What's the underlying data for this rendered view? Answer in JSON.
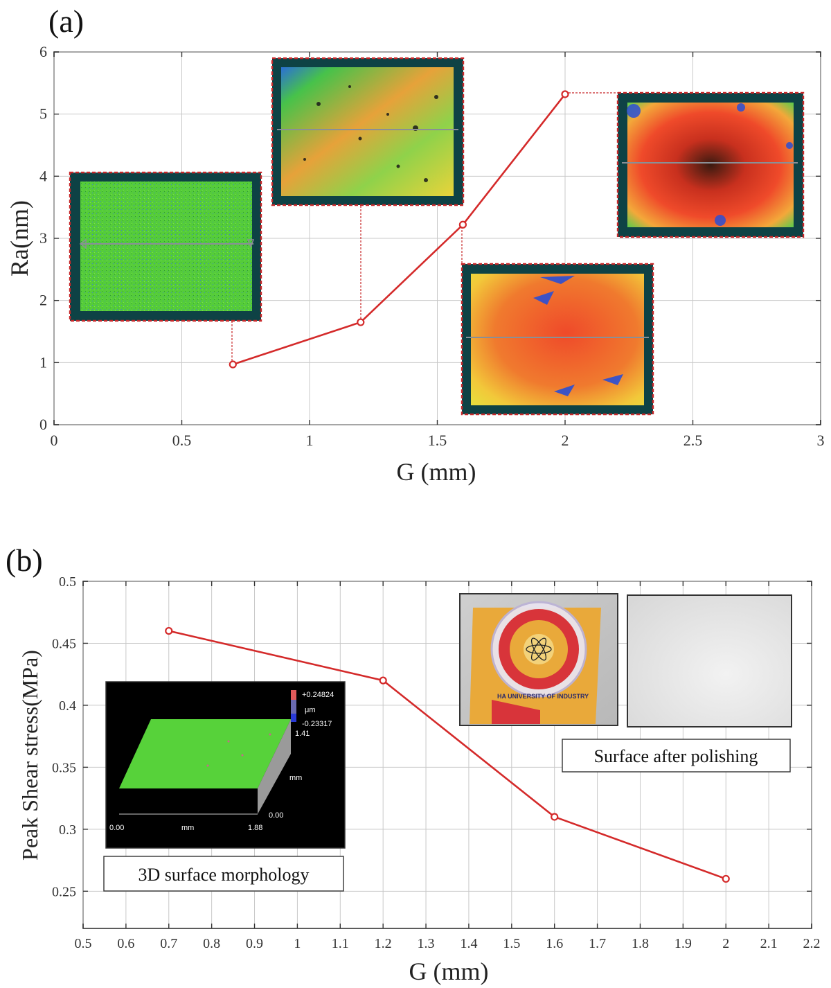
{
  "colors": {
    "series": "#d42a2a",
    "inset_border": "#0e4245",
    "grid": "#c8c8c8"
  },
  "panel_a": {
    "panel_label": "(a)",
    "inset_description_icons": [
      "surface-map-green",
      "surface-map-mixed",
      "surface-map-red-yellow",
      "surface-map-red-dark"
    ]
  },
  "panel_b": {
    "panel_label": "(b)",
    "caption_morphology": "3D surface morphology",
    "caption_polishing": "Surface after polishing",
    "morphology_inset": {
      "scale_max": "+0.24824",
      "scale_unit": "μm",
      "scale_min": "-0.23317",
      "z_max": "1.41",
      "z_unit": "mm",
      "z_min": "0.00",
      "x_start": "0.00",
      "x_unit": "mm",
      "x_end": "1.88"
    },
    "photo_text": "HA UNIVERSITY OF INDUSTRY"
  },
  "chart_data": [
    {
      "type": "line",
      "title": "",
      "xlabel": "G (mm)",
      "ylabel": "Ra(nm)",
      "xlim": [
        0,
        3
      ],
      "ylim": [
        0,
        6
      ],
      "xticks": [
        0,
        0.5,
        1,
        1.5,
        2,
        2.5,
        3
      ],
      "xtick_labels": [
        "0",
        "0.5",
        "1",
        "1.5",
        "2",
        "2.5",
        "3"
      ],
      "yticks": [
        0,
        1,
        2,
        3,
        4,
        5,
        6
      ],
      "ytick_labels": [
        "0",
        "1",
        "2",
        "3",
        "4",
        "5",
        "6"
      ],
      "grid": true,
      "x": [
        0.7,
        1.2,
        1.6,
        2.0
      ],
      "series": [
        {
          "values": [
            0.97,
            1.65,
            3.22,
            5.32
          ]
        }
      ]
    },
    {
      "type": "line",
      "title": "",
      "xlabel": "G (mm)",
      "ylabel": "Peak Shear stress(MPa)",
      "xlim": [
        0.5,
        2.2
      ],
      "ylim": [
        0.22,
        0.5
      ],
      "xticks": [
        0.5,
        0.6,
        0.7,
        0.8,
        0.9,
        1,
        1.1,
        1.2,
        1.3,
        1.4,
        1.5,
        1.6,
        1.7,
        1.8,
        1.9,
        2,
        2.1,
        2.2
      ],
      "xtick_labels": [
        "0.5",
        "0.6",
        "0.7",
        "0.8",
        "0.9",
        "1",
        "1.1",
        "1.2",
        "1.3",
        "1.4",
        "1.5",
        "1.6",
        "1.7",
        "1.8",
        "1.9",
        "2",
        "2.1",
        "2.2"
      ],
      "yticks": [
        0.25,
        0.3,
        0.35,
        0.4,
        0.45,
        0.5
      ],
      "ytick_labels": [
        "0.25",
        "0.3",
        "0.35",
        "0.4",
        "0.45",
        "0.5"
      ],
      "grid": true,
      "x": [
        0.7,
        1.2,
        1.6,
        2.0
      ],
      "series": [
        {
          "values": [
            0.46,
            0.42,
            0.31,
            0.26
          ]
        }
      ]
    }
  ]
}
